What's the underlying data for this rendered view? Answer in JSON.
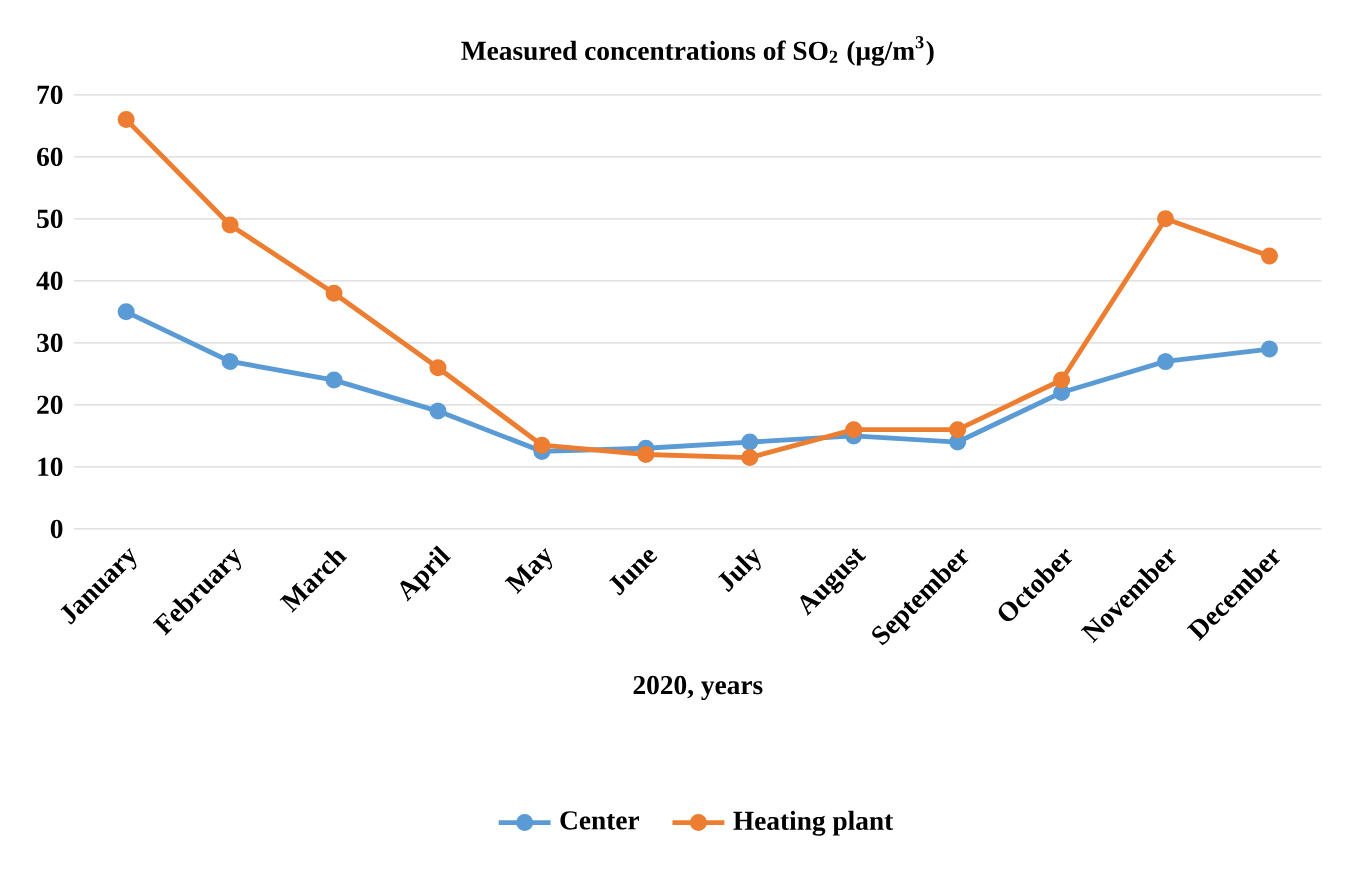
{
  "chart_data": {
    "type": "line",
    "title": "Measured concentrations of SO$_{2}$ (μg/m$^{3}$)",
    "xlabel": "2020, years",
    "categories": [
      "January",
      "February",
      "March",
      "April",
      "May",
      "June",
      "July",
      "August",
      "September",
      "October",
      "November",
      "December"
    ],
    "series": [
      {
        "name": "Center",
        "color": "#5b9bd5",
        "values": [
          35,
          27,
          24,
          19,
          12.5,
          13,
          14,
          15,
          14,
          22,
          27,
          29
        ]
      },
      {
        "name": "Heating plant",
        "color": "#ed7d31",
        "values": [
          66,
          49,
          38,
          26,
          13.5,
          12,
          11.5,
          16,
          16,
          24,
          50,
          44
        ]
      }
    ],
    "ylim": [
      0,
      70
    ],
    "yticks": [
      0,
      10,
      20,
      30,
      40,
      50,
      60,
      70
    ],
    "grid": "y",
    "legend": "bottom",
    "marker": "circle",
    "line_style": "solid"
  }
}
